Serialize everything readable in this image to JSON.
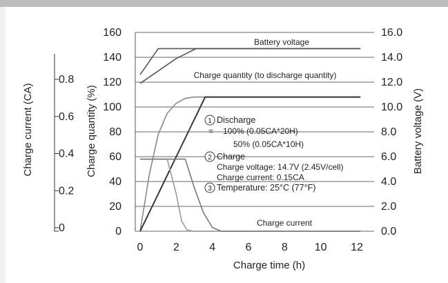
{
  "chart_data": {
    "type": "line",
    "x_label": "Charge time (h)",
    "x_ticks": [
      "0",
      "2",
      "4",
      "6",
      "8",
      "10",
      "12"
    ],
    "x_range": [
      0,
      12
    ],
    "y_left_label": "Charge quantity (%)",
    "y_left_ticks": [
      "0",
      "20",
      "40",
      "60",
      "80",
      "100",
      "120",
      "140",
      "160"
    ],
    "y_left_range": [
      0,
      160
    ],
    "y_right_label": "Battery voltage (V)",
    "y_right_ticks": [
      "0.0",
      "2.0",
      "4.0",
      "6.0",
      "8.0",
      "10.0",
      "12.0",
      "14.0",
      "16.0"
    ],
    "y_right_range": [
      0,
      16
    ],
    "y_current_label": "Charge current (CA)",
    "y_current_ticks": [
      "0",
      "0.2",
      "0.4",
      "0.6",
      "0.8"
    ],
    "grid": "horizontal",
    "series": [
      {
        "name": "Battery voltage",
        "axis": "right",
        "color": "#555555",
        "x": [
          0,
          1,
          12.2
        ],
        "y": [
          12.6,
          14.7,
          14.7
        ]
      },
      {
        "name": "Battery voltage",
        "axis": "right",
        "color": "#555555",
        "x": [
          0,
          1,
          2,
          3.1,
          12.2
        ],
        "y": [
          11.9,
          12.9,
          13.9,
          14.7,
          14.7
        ]
      },
      {
        "name": "Charge quantity (to discharge quantity)",
        "axis": "left",
        "color": "#888888",
        "x": [
          0,
          0.5,
          1,
          1.5,
          2,
          2.5,
          3,
          12.2
        ],
        "y": [
          0,
          45,
          78,
          95,
          103,
          107,
          108,
          108
        ]
      },
      {
        "name": "Charge quantity (to discharge quantity)",
        "axis": "left",
        "color": "#333333",
        "x": [
          0,
          1,
          2,
          3,
          3.6,
          12.2
        ],
        "y": [
          0,
          30,
          60,
          90,
          108,
          108
        ]
      },
      {
        "name": "Charge current",
        "axis": "left",
        "color": "#999999",
        "x": [
          0,
          1.5,
          2,
          2.3,
          2.6,
          3,
          12.2
        ],
        "y": [
          58,
          58,
          30,
          8,
          1,
          0,
          0
        ]
      },
      {
        "name": "Charge current",
        "axis": "left",
        "color": "#777777",
        "x": [
          0,
          2.5,
          3,
          3.5,
          4,
          4.5,
          12.2
        ],
        "y": [
          58,
          58,
          35,
          15,
          3,
          0,
          0
        ]
      }
    ],
    "series_labels": [
      "Battery voltage",
      "Charge quantity (to discharge quantity)",
      "Charge current"
    ]
  },
  "annotations": {
    "discharge_num": "1",
    "discharge_title": "Discharge",
    "discharge_line1": "100% (0.05CA*20H)",
    "discharge_line2": "50% (0.05CA*10H)",
    "eq_symbol": "=",
    "charge_num": "2",
    "charge_title": "Charge",
    "charge_line1": "Charge voltage: 14.7V (2.45V/cell)",
    "charge_line2": "Charge current: 0.15CA",
    "temp_num": "3",
    "temp_line": "Temperature: 25°C (77°F)"
  },
  "colors": {
    "grid": "#9a9a9a",
    "line_dark": "#333333",
    "line_mid": "#777777",
    "line_light": "#9a9a9a"
  }
}
